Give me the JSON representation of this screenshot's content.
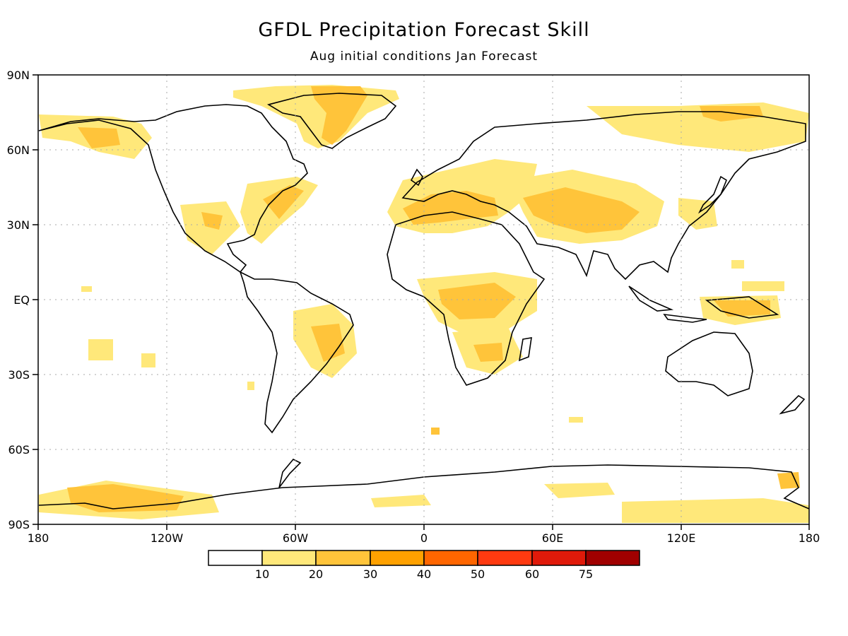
{
  "title": "GFDL Precipitation Forecast Skill",
  "subtitle": "Aug initial conditions  Jan Forecast",
  "lat_labels": [
    "90N",
    "60N",
    "30N",
    "EQ",
    "30S",
    "60S",
    "90S"
  ],
  "lon_labels": [
    "180",
    "120W",
    "60W",
    "0",
    "60E",
    "120E",
    "180"
  ],
  "colorbar": {
    "tick_labels": [
      "10",
      "20",
      "30",
      "40",
      "50",
      "60",
      "75"
    ],
    "colors": [
      "#ffffff",
      "#ffe87a",
      "#ffc43a",
      "#ffa100",
      "#ff6600",
      "#ff3a10",
      "#e01a0a",
      "#a00000"
    ]
  },
  "colors": {
    "coastline": "#000000",
    "gridline": "#aaaaaa",
    "frame": "#000000"
  }
}
